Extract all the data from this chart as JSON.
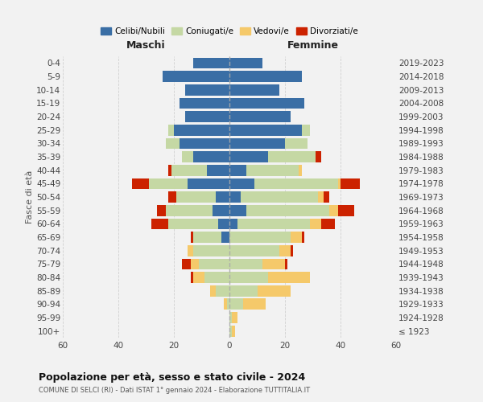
{
  "age_groups": [
    "100+",
    "95-99",
    "90-94",
    "85-89",
    "80-84",
    "75-79",
    "70-74",
    "65-69",
    "60-64",
    "55-59",
    "50-54",
    "45-49",
    "40-44",
    "35-39",
    "30-34",
    "25-29",
    "20-24",
    "15-19",
    "10-14",
    "5-9",
    "0-4"
  ],
  "birth_years": [
    "≤ 1923",
    "1924-1928",
    "1929-1933",
    "1934-1938",
    "1939-1943",
    "1944-1948",
    "1949-1953",
    "1954-1958",
    "1959-1963",
    "1964-1968",
    "1969-1973",
    "1974-1978",
    "1979-1983",
    "1984-1988",
    "1989-1993",
    "1994-1998",
    "1999-2003",
    "2004-2008",
    "2009-2013",
    "2014-2018",
    "2019-2023"
  ],
  "colors": {
    "celibi": "#3a6ea5",
    "coniugati": "#c5d8a4",
    "vedovi": "#f5c96a",
    "divorziati": "#cc2200"
  },
  "male": {
    "celibi": [
      0,
      0,
      0,
      0,
      0,
      0,
      0,
      3,
      4,
      6,
      5,
      15,
      8,
      13,
      18,
      20,
      16,
      18,
      16,
      24,
      13
    ],
    "coniugati": [
      0,
      0,
      1,
      5,
      9,
      11,
      13,
      10,
      18,
      17,
      14,
      14,
      13,
      4,
      5,
      2,
      0,
      0,
      0,
      0,
      0
    ],
    "vedovi": [
      0,
      0,
      1,
      2,
      4,
      3,
      2,
      0,
      0,
      0,
      0,
      0,
      0,
      0,
      0,
      0,
      0,
      0,
      0,
      0,
      0
    ],
    "divorziati": [
      0,
      0,
      0,
      0,
      1,
      3,
      0,
      1,
      6,
      3,
      3,
      6,
      1,
      0,
      0,
      0,
      0,
      0,
      0,
      0,
      0
    ]
  },
  "female": {
    "celibi": [
      0,
      0,
      0,
      0,
      0,
      0,
      0,
      0,
      3,
      6,
      4,
      9,
      6,
      14,
      20,
      26,
      22,
      27,
      18,
      26,
      12
    ],
    "coniugati": [
      1,
      1,
      5,
      10,
      14,
      12,
      18,
      22,
      26,
      30,
      28,
      30,
      19,
      17,
      8,
      3,
      0,
      0,
      0,
      0,
      0
    ],
    "vedovi": [
      1,
      2,
      8,
      12,
      15,
      8,
      4,
      4,
      4,
      3,
      2,
      1,
      1,
      0,
      0,
      0,
      0,
      0,
      0,
      0,
      0
    ],
    "divorziati": [
      0,
      0,
      0,
      0,
      0,
      1,
      1,
      1,
      5,
      6,
      2,
      7,
      0,
      2,
      0,
      0,
      0,
      0,
      0,
      0,
      0
    ]
  },
  "xlim": 60,
  "title_main": "Popolazione per età, sesso e stato civile - 2024",
  "title_sub": "COMUNE DI SELCI (RI) - Dati ISTAT 1° gennaio 2024 - Elaborazione TUTTITALIA.IT",
  "ylabel_left": "Fasce di età",
  "label_maschi": "Maschi",
  "label_femmine": "Femmine",
  "legend_labels": [
    "Celibi/Nubili",
    "Coniugati/e",
    "Vedovi/e",
    "Divorziati/e"
  ],
  "bg_color": "#f2f2f2",
  "grid_color": "#cccccc"
}
